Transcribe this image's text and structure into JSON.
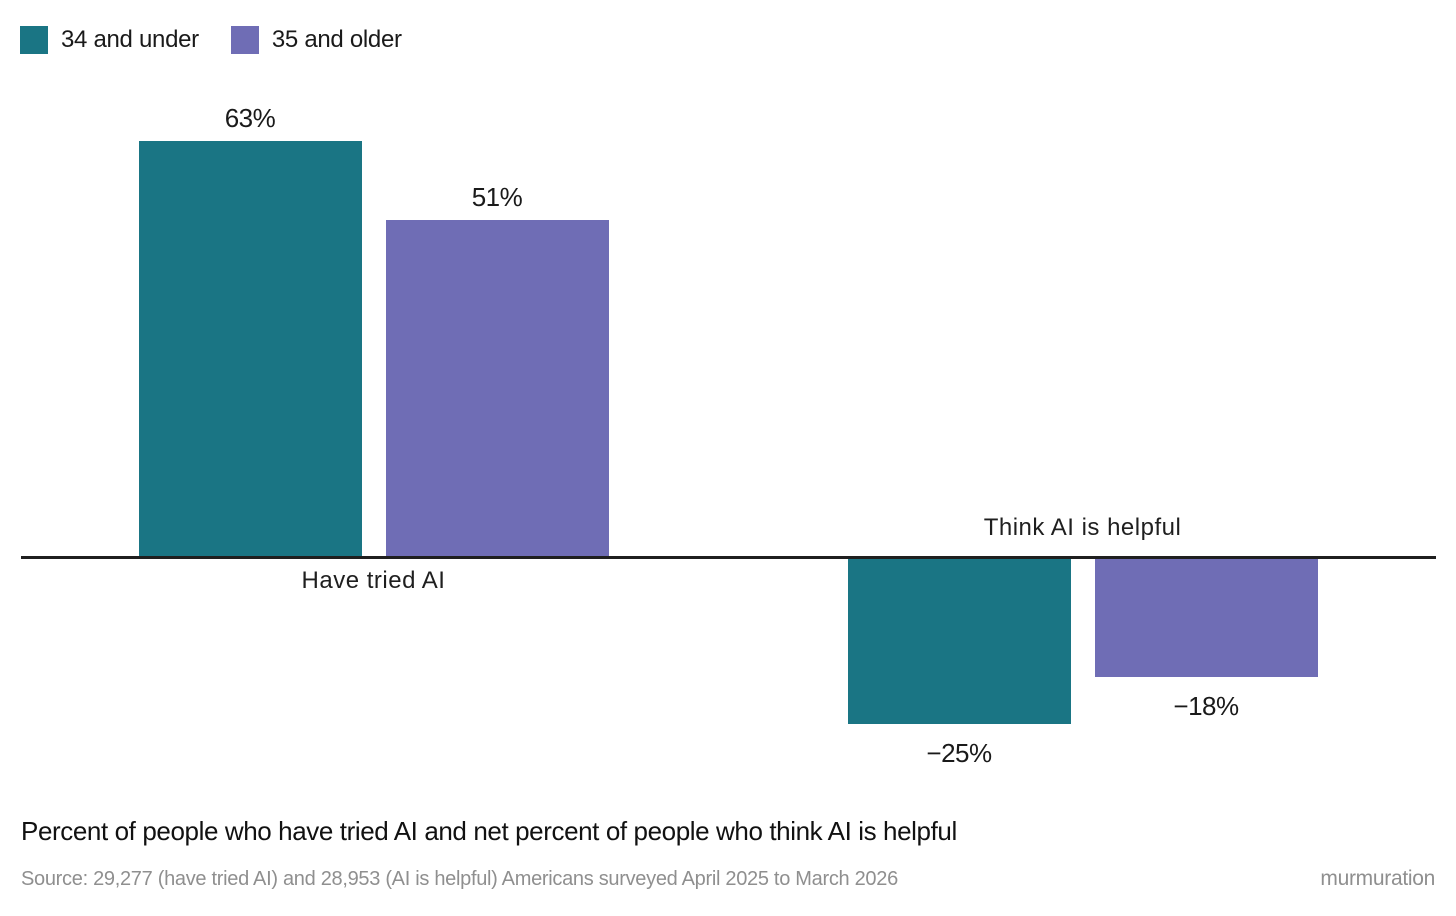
{
  "legend": [
    {
      "label": "34 and under",
      "color": "#1A7584"
    },
    {
      "label": "35 and older",
      "color": "#6F6DB5"
    }
  ],
  "title": "Percent of people who have tried AI and net percent of people who think AI is helpful",
  "source": "Source: 29,277 (have tried AI) and 28,953 (AI is helpful) Americans surveyed April 2025 to March 2026",
  "brand": "murmuration",
  "chart_data": {
    "type": "bar",
    "categories": [
      "Have tried AI",
      "Think AI is helpful"
    ],
    "series": [
      {
        "name": "34 and under",
        "color": "#1A7584",
        "values": [
          63,
          -25
        ],
        "labels": [
          "63%",
          "−25%"
        ]
      },
      {
        "name": "35 and older",
        "color": "#6F6DB5",
        "values": [
          51,
          -18
        ],
        "labels": [
          "51%",
          "−18%"
        ]
      }
    ],
    "ylim": [
      -30,
      70
    ],
    "baseline": 0,
    "grid": false,
    "legend_position": "top-left",
    "value_label_format": "percent",
    "notes": "Positive bars labeled above bar with category name below axis; negative bars labeled below bar with category name above axis"
  },
  "colors": {
    "axis": "#1F1F1F",
    "text": "#1A1A1A",
    "muted_text": "#8F8F8F",
    "background": "#FFFFFF"
  }
}
